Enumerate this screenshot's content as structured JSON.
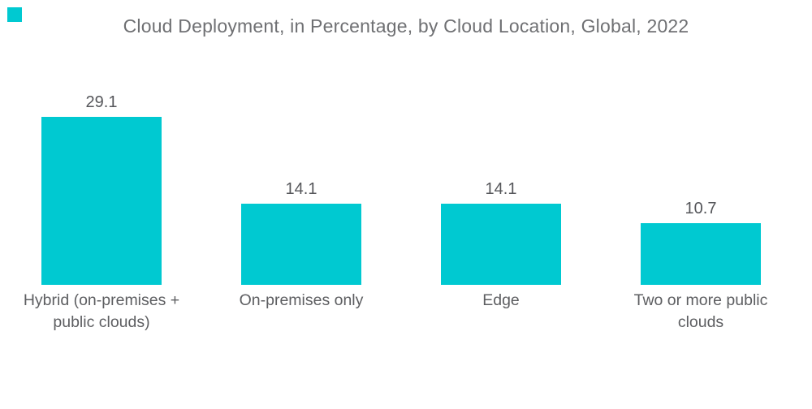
{
  "page": {
    "background_color": "#ffffff"
  },
  "brand": {
    "square_color": "#00c9d1"
  },
  "chart_data": {
    "type": "bar",
    "title": "Cloud Deployment, in Percentage, by Cloud Location, Global, 2022",
    "categories": [
      "Hybrid (on-premises + public clouds)",
      "On-premises only",
      "Edge",
      "Two or more public clouds"
    ],
    "values": [
      29.1,
      14.1,
      14.1,
      10.7
    ],
    "unit": "percent",
    "bar_color": "#00c9d1",
    "value_label_color": "#55565a",
    "title_color": "#6f7073",
    "category_label_color": "#5d5e61",
    "orientation": "vertical",
    "grid": false,
    "axes_visible": false,
    "legend": "none",
    "ylim": [
      0,
      35
    ]
  }
}
